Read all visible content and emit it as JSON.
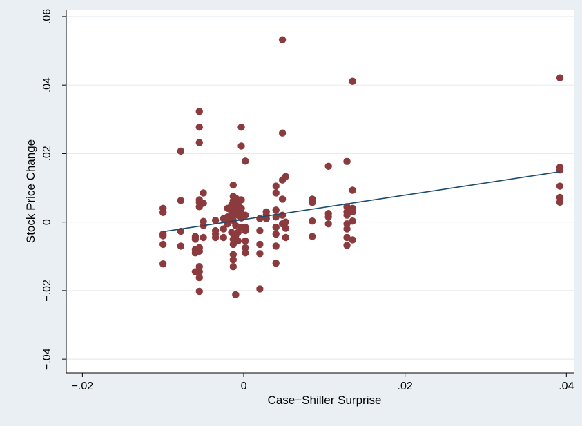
{
  "chart_data": {
    "type": "scatter",
    "title": "",
    "xlabel": "Case−Shiller Surprise",
    "ylabel": "Stock Price Change",
    "xlim": [
      -0.022,
      0.041
    ],
    "ylim": [
      -0.044,
      0.062
    ],
    "x_ticks": [
      -0.02,
      0,
      0.02,
      0.04
    ],
    "x_tick_labels": [
      "−.02",
      "0",
      ".02",
      ".04"
    ],
    "y_ticks": [
      -0.04,
      -0.02,
      0,
      0.02,
      0.04,
      0.06
    ],
    "y_tick_labels": [
      "−.04",
      "−.02",
      "0",
      ".02",
      ".04",
      ".06"
    ],
    "grid": true,
    "legend": "none",
    "colors": {
      "outer_background": "#e9eff3",
      "plot_background": "#ffffff",
      "gridline": "#e6ecef",
      "marker": "#8b3a3d",
      "fit_line": "#1b4c6e"
    },
    "series": [
      {
        "kind": "points",
        "points": [
          [
            -0.01,
            0.004
          ],
          [
            -0.01,
            0.0028
          ],
          [
            -0.01,
            -0.0035
          ],
          [
            -0.01,
            -0.004
          ],
          [
            -0.01,
            -0.0065
          ],
          [
            -0.01,
            -0.0122
          ],
          [
            -0.0078,
            0.0207
          ],
          [
            -0.0078,
            0.0063
          ],
          [
            -0.0078,
            -0.0027
          ],
          [
            -0.0078,
            -0.007
          ],
          [
            -0.006,
            -0.0042
          ],
          [
            -0.006,
            -0.005
          ],
          [
            -0.006,
            -0.008
          ],
          [
            -0.006,
            -0.009
          ],
          [
            -0.006,
            -0.0145
          ],
          [
            -0.0055,
            0.0323
          ],
          [
            -0.0055,
            0.0277
          ],
          [
            -0.0055,
            0.0232
          ],
          [
            -0.0055,
            0.0065
          ],
          [
            -0.0055,
            0.0058
          ],
          [
            -0.0055,
            0.0045
          ],
          [
            -0.0055,
            -0.0075
          ],
          [
            -0.0055,
            -0.0085
          ],
          [
            -0.0055,
            -0.013
          ],
          [
            -0.0055,
            -0.0145
          ],
          [
            -0.0055,
            -0.0162
          ],
          [
            -0.0055,
            -0.0202
          ],
          [
            -0.005,
            0.0085
          ],
          [
            -0.005,
            0.0055
          ],
          [
            -0.005,
            0.0002
          ],
          [
            -0.005,
            -0.001
          ],
          [
            -0.005,
            -0.0045
          ],
          [
            -0.0035,
            0.0005
          ],
          [
            -0.0035,
            -0.0025
          ],
          [
            -0.0035,
            -0.0035
          ],
          [
            -0.0035,
            -0.0045
          ],
          [
            -0.0025,
            0.001
          ],
          [
            -0.0025,
            -0.002
          ],
          [
            -0.0025,
            -0.0045
          ],
          [
            -0.002,
            0.0015
          ],
          [
            -0.002,
            0.004
          ],
          [
            -0.002,
            0.001
          ],
          [
            -0.002,
            -0.0005
          ],
          [
            -0.0015,
            0.003
          ],
          [
            -0.0015,
            0.005
          ],
          [
            -0.0015,
            0.002
          ],
          [
            -0.0015,
            -0.003
          ],
          [
            -0.0013,
            0.0108
          ],
          [
            -0.0013,
            0.0075
          ],
          [
            -0.0013,
            0.0062
          ],
          [
            -0.0013,
            0.0042
          ],
          [
            -0.0013,
            0.0025
          ],
          [
            -0.0013,
            0.0005
          ],
          [
            -0.0013,
            -0.0035
          ],
          [
            -0.0013,
            -0.005
          ],
          [
            -0.0013,
            -0.0065
          ],
          [
            -0.0013,
            -0.0095
          ],
          [
            -0.0013,
            -0.011
          ],
          [
            -0.0013,
            -0.013
          ],
          [
            -0.001,
            0.007
          ],
          [
            -0.001,
            0.0035
          ],
          [
            -0.001,
            -0.001
          ],
          [
            -0.001,
            -0.004
          ],
          [
            -0.001,
            -0.0212
          ],
          [
            -0.0007,
            0.0065
          ],
          [
            -0.0007,
            0.005
          ],
          [
            -0.0007,
            0.002
          ],
          [
            -0.0007,
            -0.003
          ],
          [
            -0.0007,
            -0.0055
          ],
          [
            -0.0003,
            0.0277
          ],
          [
            -0.0003,
            0.0222
          ],
          [
            -0.0003,
            0.0065
          ],
          [
            -0.0003,
            0.004
          ],
          [
            -0.0003,
            0.0025
          ],
          [
            -0.0003,
            0.0012
          ],
          [
            -0.0003,
            -0.0015
          ],
          [
            0.0002,
            0.0178
          ],
          [
            0.0002,
            0.002
          ],
          [
            0.0002,
            -0.0015
          ],
          [
            0.0002,
            -0.0025
          ],
          [
            0.0002,
            -0.0055
          ],
          [
            0.0002,
            -0.0075
          ],
          [
            0.0002,
            -0.009
          ],
          [
            0.002,
            -0.0195
          ],
          [
            0.002,
            0.001
          ],
          [
            0.002,
            -0.0025
          ],
          [
            0.002,
            -0.0065
          ],
          [
            0.002,
            -0.0092
          ],
          [
            0.0028,
            0.003
          ],
          [
            0.0028,
            0.002
          ],
          [
            0.0028,
            0.001
          ],
          [
            0.004,
            0.0105
          ],
          [
            0.004,
            0.0085
          ],
          [
            0.004,
            0.0035
          ],
          [
            0.004,
            0.0015
          ],
          [
            0.004,
            -0.0015
          ],
          [
            0.004,
            -0.0035
          ],
          [
            0.004,
            -0.007
          ],
          [
            0.004,
            -0.012
          ],
          [
            0.0048,
            0.0532
          ],
          [
            0.0048,
            0.026
          ],
          [
            0.0048,
            0.0123
          ],
          [
            0.0048,
            0.0067
          ],
          [
            0.0048,
            0.002
          ],
          [
            0.0048,
            -0.0005
          ],
          [
            0.0052,
            0.0133
          ],
          [
            0.0052,
            0.0
          ],
          [
            0.0052,
            -0.0018
          ],
          [
            0.0052,
            -0.0045
          ],
          [
            0.0085,
            0.0067
          ],
          [
            0.0085,
            0.0057
          ],
          [
            0.0085,
            0.0003
          ],
          [
            0.0085,
            -0.0042
          ],
          [
            0.0105,
            0.0163
          ],
          [
            0.0105,
            0.0025
          ],
          [
            0.0105,
            0.0015
          ],
          [
            0.0105,
            -0.0005
          ],
          [
            0.0128,
            0.0177
          ],
          [
            0.0128,
            0.0045
          ],
          [
            0.0128,
            0.003
          ],
          [
            0.0128,
            0.002
          ],
          [
            0.0128,
            -0.0005
          ],
          [
            0.0128,
            -0.002
          ],
          [
            0.0128,
            -0.0045
          ],
          [
            0.0128,
            -0.0068
          ],
          [
            0.0135,
            0.0411
          ],
          [
            0.0135,
            0.0093
          ],
          [
            0.0135,
            0.004
          ],
          [
            0.0135,
            0.003
          ],
          [
            0.0135,
            0.0003
          ],
          [
            0.0135,
            -0.0052
          ],
          [
            0.0392,
            0.0421
          ],
          [
            0.0392,
            0.016
          ],
          [
            0.0392,
            0.0152
          ],
          [
            0.0392,
            0.0105
          ],
          [
            0.0392,
            0.0072
          ],
          [
            0.0392,
            0.0058
          ]
        ]
      },
      {
        "kind": "fitted_line",
        "points": [
          [
            -0.01,
            -0.0028
          ],
          [
            0.0392,
            0.0147
          ]
        ]
      }
    ]
  }
}
